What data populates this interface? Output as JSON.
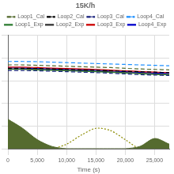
{
  "chart_data": {
    "type": "line",
    "title": "15K/h",
    "x_label": "Time (s)",
    "x": [
      0,
      2500,
      5000,
      7500,
      10000,
      12500,
      15000,
      17500,
      20000,
      22500,
      25000,
      27500
    ],
    "xlim": [
      0,
      27500
    ],
    "xticks": [
      0,
      5000,
      10000,
      15000,
      20000,
      25000
    ],
    "ylim": [
      0,
      5
    ],
    "yticks": [
      0,
      1,
      2,
      3,
      4,
      5
    ],
    "grid": true,
    "legend": "top",
    "tick_labels": "x",
    "series": [
      {
        "name": "Loop1_Cal",
        "color": "#556b2f",
        "line_style": "dashed",
        "values": [
          3.7,
          3.7,
          3.68,
          3.66,
          3.64,
          3.62,
          3.6,
          3.58,
          3.55,
          3.52,
          3.5,
          3.48
        ]
      },
      {
        "name": "Loop2_Cal",
        "color": "#000000",
        "line_style": "dashed",
        "values": [
          3.55,
          3.55,
          3.54,
          3.52,
          3.5,
          3.48,
          3.46,
          3.44,
          3.42,
          3.4,
          3.38,
          3.36
        ]
      },
      {
        "name": "Loop3_Cal",
        "color": "#1a237e",
        "line_style": "dashed",
        "values": [
          3.45,
          3.45,
          3.44,
          3.42,
          3.4,
          3.38,
          3.36,
          3.33,
          3.3,
          3.27,
          3.25,
          3.23
        ]
      },
      {
        "name": "Loop4_Cal",
        "color": "#1e90ff",
        "line_style": "dashed",
        "values": [
          3.85,
          3.85,
          3.84,
          3.82,
          3.8,
          3.78,
          3.76,
          3.74,
          3.72,
          3.7,
          3.68,
          3.66
        ]
      },
      {
        "name": "Loop1_Exp",
        "color": "#2e7d32",
        "line_style": "solid",
        "values": [
          3.5,
          3.5,
          3.48,
          3.46,
          3.44,
          3.42,
          3.4,
          3.37,
          3.34,
          3.31,
          3.28,
          3.26
        ]
      },
      {
        "name": "Loop2_Exp",
        "color": "#333333",
        "line_style": "solid",
        "values": [
          3.52,
          3.51,
          3.5,
          3.48,
          3.46,
          3.44,
          3.42,
          3.39,
          3.36,
          3.33,
          3.3,
          3.28
        ]
      },
      {
        "name": "Loop3_Exp",
        "color": "#cc0000",
        "line_style": "solid",
        "values": [
          3.6,
          3.6,
          3.58,
          3.56,
          3.54,
          3.52,
          3.5,
          3.47,
          3.44,
          3.41,
          3.38,
          3.36
        ]
      },
      {
        "name": "Loop4_Exp",
        "color": "#0000cc",
        "line_style": "solid",
        "values": [
          3.56,
          3.56,
          3.54,
          3.52,
          3.5,
          3.48,
          3.46,
          3.43,
          3.4,
          3.37,
          3.34,
          3.32
        ]
      },
      {
        "color": "#556b2f",
        "type": "area",
        "values": [
          1.3,
          0.9,
          0.4,
          0.1,
          0,
          0,
          0,
          0,
          0,
          0.1,
          0.45,
          0.2
        ]
      },
      {
        "color": "#8b8b00",
        "line_style": "dotted",
        "values": [
          0,
          0,
          0,
          0,
          0.2,
          0.6,
          0.9,
          0.8,
          0.4,
          0,
          0,
          0
        ]
      }
    ]
  }
}
